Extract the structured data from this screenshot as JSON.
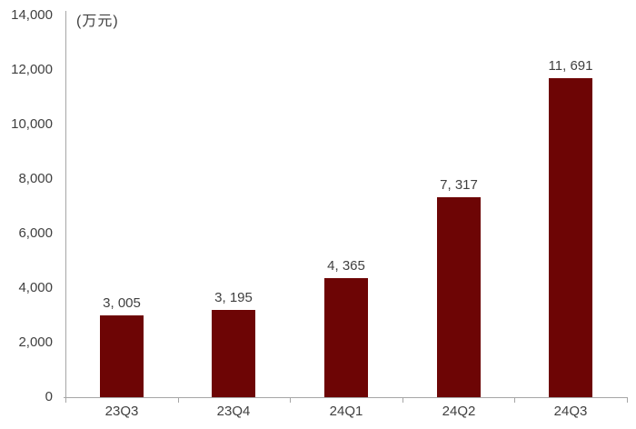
{
  "chart_data": {
    "type": "bar",
    "unit_label": "(万元)",
    "categories": [
      "23Q3",
      "23Q4",
      "24Q1",
      "24Q2",
      "24Q3"
    ],
    "values": [
      3005,
      3195,
      4365,
      7317,
      11691
    ],
    "value_labels": [
      "3, 005",
      "3, 195",
      "4, 365",
      "7, 317",
      "11, 691"
    ],
    "ylim": [
      0,
      14000
    ],
    "ytick_step": 2000,
    "ytick_labels": [
      "0",
      "2,000",
      "4,000",
      "6,000",
      "8,000",
      "10,000",
      "12,000",
      "14,000"
    ],
    "grid": false,
    "legend_position": "none",
    "colors": {
      "bar": "#6D0505",
      "axis": "#A6A6A6",
      "text": "#404040",
      "background": "#FFFFFF"
    }
  }
}
